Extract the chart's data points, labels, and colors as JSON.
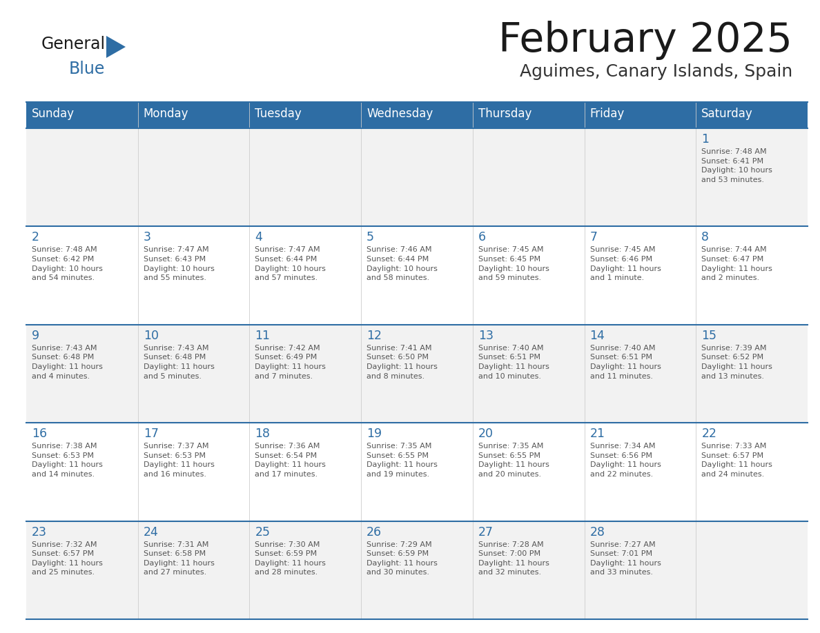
{
  "title": "February 2025",
  "subtitle": "Aguimes, Canary Islands, Spain",
  "header_bg": "#2E6DA4",
  "header_text_color": "#FFFFFF",
  "day_names": [
    "Sunday",
    "Monday",
    "Tuesday",
    "Wednesday",
    "Thursday",
    "Friday",
    "Saturday"
  ],
  "cell_bg_row0": "#F2F2F2",
  "cell_bg_row1": "#FFFFFF",
  "cell_bg_row2": "#F2F2F2",
  "cell_bg_row3": "#FFFFFF",
  "cell_bg_row4": "#F2F2F2",
  "grid_line_color": "#2E6DA4",
  "title_color": "#1a1a1a",
  "subtitle_color": "#333333",
  "day_num_color": "#2E6DA4",
  "text_color": "#555555",
  "logo_general_color": "#1a1a1a",
  "logo_blue_color": "#2E6DA4",
  "logo_triangle_color": "#2E6DA4",
  "weeks": [
    [
      {
        "day": 0,
        "text": ""
      },
      {
        "day": 0,
        "text": ""
      },
      {
        "day": 0,
        "text": ""
      },
      {
        "day": 0,
        "text": ""
      },
      {
        "day": 0,
        "text": ""
      },
      {
        "day": 0,
        "text": ""
      },
      {
        "day": 1,
        "text": "Sunrise: 7:48 AM\nSunset: 6:41 PM\nDaylight: 10 hours\nand 53 minutes."
      }
    ],
    [
      {
        "day": 2,
        "text": "Sunrise: 7:48 AM\nSunset: 6:42 PM\nDaylight: 10 hours\nand 54 minutes."
      },
      {
        "day": 3,
        "text": "Sunrise: 7:47 AM\nSunset: 6:43 PM\nDaylight: 10 hours\nand 55 minutes."
      },
      {
        "day": 4,
        "text": "Sunrise: 7:47 AM\nSunset: 6:44 PM\nDaylight: 10 hours\nand 57 minutes."
      },
      {
        "day": 5,
        "text": "Sunrise: 7:46 AM\nSunset: 6:44 PM\nDaylight: 10 hours\nand 58 minutes."
      },
      {
        "day": 6,
        "text": "Sunrise: 7:45 AM\nSunset: 6:45 PM\nDaylight: 10 hours\nand 59 minutes."
      },
      {
        "day": 7,
        "text": "Sunrise: 7:45 AM\nSunset: 6:46 PM\nDaylight: 11 hours\nand 1 minute."
      },
      {
        "day": 8,
        "text": "Sunrise: 7:44 AM\nSunset: 6:47 PM\nDaylight: 11 hours\nand 2 minutes."
      }
    ],
    [
      {
        "day": 9,
        "text": "Sunrise: 7:43 AM\nSunset: 6:48 PM\nDaylight: 11 hours\nand 4 minutes."
      },
      {
        "day": 10,
        "text": "Sunrise: 7:43 AM\nSunset: 6:48 PM\nDaylight: 11 hours\nand 5 minutes."
      },
      {
        "day": 11,
        "text": "Sunrise: 7:42 AM\nSunset: 6:49 PM\nDaylight: 11 hours\nand 7 minutes."
      },
      {
        "day": 12,
        "text": "Sunrise: 7:41 AM\nSunset: 6:50 PM\nDaylight: 11 hours\nand 8 minutes."
      },
      {
        "day": 13,
        "text": "Sunrise: 7:40 AM\nSunset: 6:51 PM\nDaylight: 11 hours\nand 10 minutes."
      },
      {
        "day": 14,
        "text": "Sunrise: 7:40 AM\nSunset: 6:51 PM\nDaylight: 11 hours\nand 11 minutes."
      },
      {
        "day": 15,
        "text": "Sunrise: 7:39 AM\nSunset: 6:52 PM\nDaylight: 11 hours\nand 13 minutes."
      }
    ],
    [
      {
        "day": 16,
        "text": "Sunrise: 7:38 AM\nSunset: 6:53 PM\nDaylight: 11 hours\nand 14 minutes."
      },
      {
        "day": 17,
        "text": "Sunrise: 7:37 AM\nSunset: 6:53 PM\nDaylight: 11 hours\nand 16 minutes."
      },
      {
        "day": 18,
        "text": "Sunrise: 7:36 AM\nSunset: 6:54 PM\nDaylight: 11 hours\nand 17 minutes."
      },
      {
        "day": 19,
        "text": "Sunrise: 7:35 AM\nSunset: 6:55 PM\nDaylight: 11 hours\nand 19 minutes."
      },
      {
        "day": 20,
        "text": "Sunrise: 7:35 AM\nSunset: 6:55 PM\nDaylight: 11 hours\nand 20 minutes."
      },
      {
        "day": 21,
        "text": "Sunrise: 7:34 AM\nSunset: 6:56 PM\nDaylight: 11 hours\nand 22 minutes."
      },
      {
        "day": 22,
        "text": "Sunrise: 7:33 AM\nSunset: 6:57 PM\nDaylight: 11 hours\nand 24 minutes."
      }
    ],
    [
      {
        "day": 23,
        "text": "Sunrise: 7:32 AM\nSunset: 6:57 PM\nDaylight: 11 hours\nand 25 minutes."
      },
      {
        "day": 24,
        "text": "Sunrise: 7:31 AM\nSunset: 6:58 PM\nDaylight: 11 hours\nand 27 minutes."
      },
      {
        "day": 25,
        "text": "Sunrise: 7:30 AM\nSunset: 6:59 PM\nDaylight: 11 hours\nand 28 minutes."
      },
      {
        "day": 26,
        "text": "Sunrise: 7:29 AM\nSunset: 6:59 PM\nDaylight: 11 hours\nand 30 minutes."
      },
      {
        "day": 27,
        "text": "Sunrise: 7:28 AM\nSunset: 7:00 PM\nDaylight: 11 hours\nand 32 minutes."
      },
      {
        "day": 28,
        "text": "Sunrise: 7:27 AM\nSunset: 7:01 PM\nDaylight: 11 hours\nand 33 minutes."
      },
      {
        "day": 0,
        "text": ""
      }
    ]
  ]
}
